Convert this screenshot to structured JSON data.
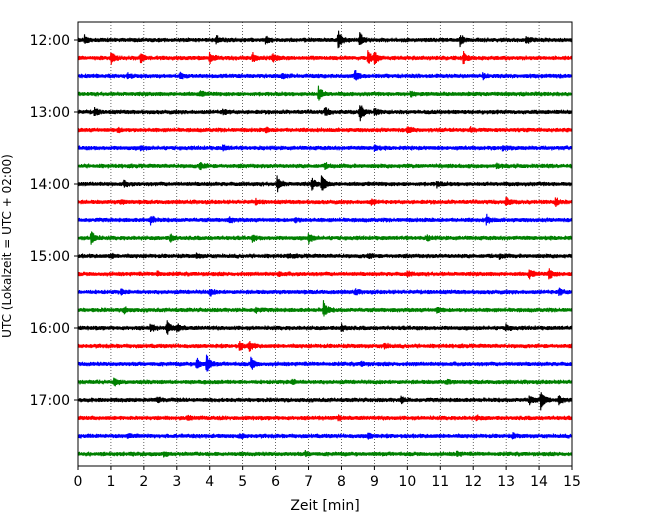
{
  "chart_data": {
    "type": "line",
    "title": "",
    "xlabel": "Zeit  [min]",
    "ylabel": "UTC (Lokalzeit = UTC + 02:00)",
    "xlim": [
      0,
      15
    ],
    "x_ticks": [
      0,
      1,
      2,
      3,
      4,
      5,
      6,
      7,
      8,
      9,
      10,
      11,
      12,
      13,
      14,
      15
    ],
    "y_tick_labels": [
      "12:00",
      "13:00",
      "14:00",
      "15:00",
      "16:00",
      "17:00"
    ],
    "grid": "vertical-dotted",
    "legend": "none",
    "trace_colors": [
      "#000000",
      "#ff0000",
      "#0000ff",
      "#008000"
    ],
    "trace_interval_minutes": 15,
    "traces": [
      {
        "start": "12:00",
        "color": "#000000",
        "events": [
          [
            0.2,
            0.4
          ],
          [
            4.2,
            0.35
          ],
          [
            5.7,
            0.4
          ],
          [
            7.9,
            1.0
          ],
          [
            8.55,
            0.75
          ],
          [
            11.6,
            0.6
          ],
          [
            13.6,
            0.35
          ]
        ]
      },
      {
        "start": "12:15",
        "color": "#ff0000",
        "events": [
          [
            1.0,
            0.55
          ],
          [
            1.9,
            0.5
          ],
          [
            4.0,
            0.6
          ],
          [
            5.3,
            0.5
          ],
          [
            5.9,
            0.45
          ],
          [
            8.8,
            0.7
          ],
          [
            9.0,
            0.6
          ],
          [
            11.7,
            0.6
          ]
        ]
      },
      {
        "start": "12:30",
        "color": "#0000ff",
        "events": [
          [
            1.5,
            0.25
          ],
          [
            3.1,
            0.3
          ],
          [
            6.2,
            0.25
          ],
          [
            8.4,
            0.6
          ],
          [
            12.3,
            0.25
          ]
        ]
      },
      {
        "start": "12:45",
        "color": "#008000",
        "events": [
          [
            3.7,
            0.25
          ],
          [
            7.3,
            0.75
          ],
          [
            10.1,
            0.2
          ]
        ]
      },
      {
        "start": "13:00",
        "color": "#000000",
        "events": [
          [
            0.5,
            0.4
          ],
          [
            4.4,
            0.3
          ],
          [
            7.5,
            0.45
          ],
          [
            8.55,
            1.0
          ],
          [
            9.0,
            0.35
          ]
        ]
      },
      {
        "start": "13:15",
        "color": "#ff0000",
        "events": [
          [
            1.2,
            0.2
          ],
          [
            5.7,
            0.2
          ],
          [
            10.0,
            0.4
          ],
          [
            11.9,
            0.2
          ]
        ]
      },
      {
        "start": "13:30",
        "color": "#0000ff",
        "events": [
          [
            1.9,
            0.2
          ],
          [
            4.4,
            0.25
          ],
          [
            9.0,
            0.3
          ],
          [
            12.9,
            0.25
          ]
        ]
      },
      {
        "start": "13:45",
        "color": "#008000",
        "events": [
          [
            3.7,
            0.45
          ],
          [
            7.5,
            0.25
          ],
          [
            12.7,
            0.2
          ]
        ]
      },
      {
        "start": "14:00",
        "color": "#000000",
        "events": [
          [
            1.4,
            0.25
          ],
          [
            6.05,
            0.8
          ],
          [
            7.1,
            0.6
          ],
          [
            7.4,
            0.9
          ],
          [
            10.9,
            0.3
          ]
        ]
      },
      {
        "start": "14:15",
        "color": "#ff0000",
        "events": [
          [
            1.3,
            0.2
          ],
          [
            5.4,
            0.2
          ],
          [
            8.9,
            0.25
          ],
          [
            13.0,
            0.45
          ],
          [
            14.5,
            0.4
          ]
        ]
      },
      {
        "start": "14:30",
        "color": "#0000ff",
        "events": [
          [
            2.2,
            0.45
          ],
          [
            4.6,
            0.25
          ],
          [
            6.6,
            0.2
          ],
          [
            12.4,
            0.45
          ]
        ]
      },
      {
        "start": "14:45",
        "color": "#008000",
        "events": [
          [
            0.4,
            0.75
          ],
          [
            2.8,
            0.4
          ],
          [
            5.3,
            0.3
          ],
          [
            7.0,
            0.5
          ],
          [
            10.6,
            0.2
          ]
        ]
      },
      {
        "start": "15:00",
        "color": "#000000",
        "events": [
          [
            1.0,
            0.2
          ],
          [
            3.6,
            0.2
          ],
          [
            6.4,
            0.2
          ],
          [
            8.8,
            0.25
          ],
          [
            12.8,
            0.2
          ]
        ]
      },
      {
        "start": "15:15",
        "color": "#ff0000",
        "events": [
          [
            2.4,
            0.2
          ],
          [
            6.1,
            0.2
          ],
          [
            10.0,
            0.2
          ],
          [
            13.7,
            0.45
          ],
          [
            14.3,
            0.55
          ]
        ]
      },
      {
        "start": "15:30",
        "color": "#0000ff",
        "events": [
          [
            1.3,
            0.2
          ],
          [
            4.0,
            0.35
          ],
          [
            8.4,
            0.25
          ],
          [
            14.6,
            0.35
          ]
        ]
      },
      {
        "start": "15:45",
        "color": "#008000",
        "events": [
          [
            1.4,
            0.3
          ],
          [
            5.4,
            0.25
          ],
          [
            7.45,
            0.9
          ],
          [
            10.9,
            0.25
          ]
        ]
      },
      {
        "start": "16:00",
        "color": "#000000",
        "events": [
          [
            2.2,
            0.4
          ],
          [
            2.7,
            0.7
          ],
          [
            3.0,
            0.45
          ],
          [
            8.0,
            0.35
          ],
          [
            13.0,
            0.3
          ]
        ]
      },
      {
        "start": "16:15",
        "color": "#ff0000",
        "events": [
          [
            4.9,
            0.4
          ],
          [
            5.2,
            0.55
          ],
          [
            9.3,
            0.25
          ]
        ]
      },
      {
        "start": "16:30",
        "color": "#0000ff",
        "events": [
          [
            3.6,
            0.6
          ],
          [
            3.9,
            0.95
          ],
          [
            5.25,
            0.65
          ],
          [
            8.6,
            0.2
          ]
        ]
      },
      {
        "start": "16:45",
        "color": "#008000",
        "events": [
          [
            1.1,
            0.45
          ],
          [
            6.5,
            0.2
          ],
          [
            11.2,
            0.2
          ]
        ]
      },
      {
        "start": "17:00",
        "color": "#000000",
        "events": [
          [
            2.4,
            0.25
          ],
          [
            9.8,
            0.3
          ],
          [
            13.7,
            0.5
          ],
          [
            14.05,
            1.0
          ],
          [
            14.6,
            0.4
          ]
        ]
      },
      {
        "start": "17:15",
        "color": "#ff0000",
        "events": [
          [
            3.3,
            0.2
          ],
          [
            7.9,
            0.2
          ],
          [
            12.1,
            0.2
          ]
        ]
      },
      {
        "start": "17:30",
        "color": "#0000ff",
        "events": [
          [
            1.5,
            0.2
          ],
          [
            4.9,
            0.2
          ],
          [
            8.8,
            0.3
          ],
          [
            13.2,
            0.2
          ]
        ]
      },
      {
        "start": "17:45",
        "color": "#008000",
        "events": [
          [
            2.6,
            0.2
          ],
          [
            6.9,
            0.2
          ],
          [
            11.5,
            0.2
          ]
        ]
      }
    ]
  }
}
